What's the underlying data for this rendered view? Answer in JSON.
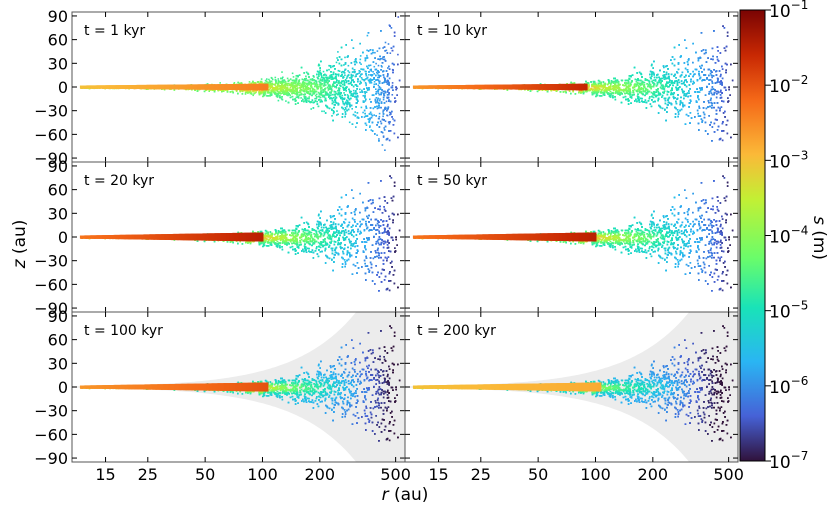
{
  "chart_data": {
    "type": "scatter",
    "title": "",
    "xlabel_prefix": "r",
    "xlabel_unit": "(au)",
    "ylabel_prefix": "z",
    "ylabel_unit": "(au)",
    "x_scale": "log",
    "xlim": [
      10,
      560
    ],
    "ylim": [
      -95,
      95
    ],
    "x_ticks": [
      15,
      25,
      50,
      100,
      200,
      500
    ],
    "x_tick_labels": [
      "15",
      "25",
      "50",
      "100",
      "200",
      "500"
    ],
    "y_ticks": [
      90,
      60,
      30,
      0,
      -30,
      -60,
      -90
    ],
    "y_tick_labels": [
      "90",
      "60",
      "30",
      "0",
      "−30",
      "−60",
      "−90"
    ],
    "panels": [
      {
        "label": "t = 1 kyr",
        "time_kyr": 1,
        "cavity_r": 0,
        "base_logs": -4.6,
        "peak_r": 100,
        "peak_logs": -2.4,
        "inner_logs": -3.0
      },
      {
        "label": "t = 10 kyr",
        "time_kyr": 10,
        "cavity_r": 0,
        "base_logs": -4.8,
        "peak_r": 85,
        "peak_logs": -1.6,
        "inner_logs": -2.6
      },
      {
        "label": "t = 20 kyr",
        "time_kyr": 20,
        "cavity_r": 0,
        "base_logs": -5.0,
        "peak_r": 95,
        "peak_logs": -1.5,
        "inner_logs": -2.3
      },
      {
        "label": "t = 50 kyr",
        "time_kyr": 50,
        "cavity_r": 0,
        "base_logs": -5.0,
        "peak_r": 95,
        "peak_logs": -1.5,
        "inner_logs": -2.3
      },
      {
        "label": "t = 100 kyr",
        "time_kyr": 100,
        "cavity_r": 0,
        "base_logs": -5.4,
        "peak_r": 100,
        "peak_logs": -2.0,
        "inner_logs": -2.6
      },
      {
        "label": "t = 200 kyr",
        "time_kyr": 200,
        "cavity_r": 0,
        "base_logs": -5.6,
        "peak_r": 100,
        "peak_logs": -2.8,
        "inner_logs": -3.0
      }
    ],
    "colorbar": {
      "label_prefix": "s",
      "label_unit": "(m)",
      "range_log10": [
        -7,
        -1
      ],
      "tick_exponents": [
        "−1",
        "−2",
        "−3",
        "−4",
        "−5",
        "−6",
        "−7"
      ],
      "tick_base": "10",
      "colormap": "turbo"
    }
  }
}
